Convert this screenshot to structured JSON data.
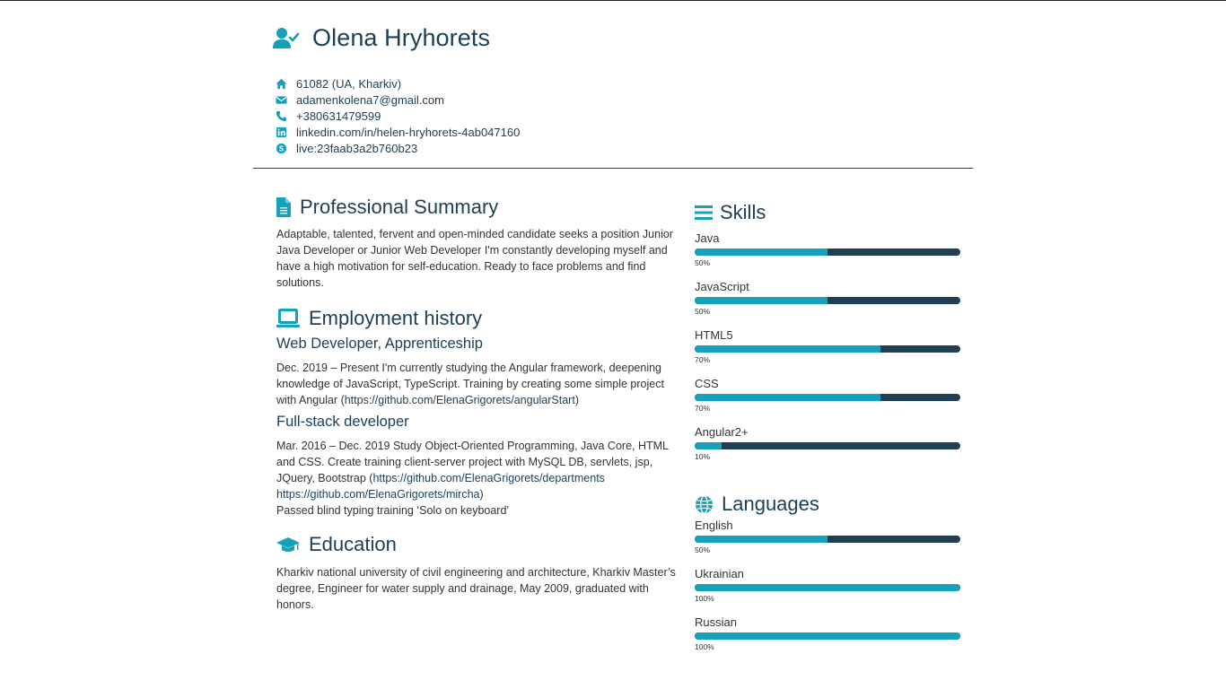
{
  "header": {
    "name": "Olena Hryhorets",
    "contacts": [
      {
        "icon": "home-icon",
        "text": "61082 (UA, Kharkiv)"
      },
      {
        "icon": "mail-icon",
        "text": "adamenkolena7@gmail.com"
      },
      {
        "icon": "phone-icon",
        "text": "+380631479599"
      },
      {
        "icon": "linkedin-icon",
        "text": "linkedin.com/in/helen-hryhorets-4ab047160"
      },
      {
        "icon": "skype-icon",
        "text": "live:23faab3a2b760b23"
      }
    ]
  },
  "summary": {
    "title": "Professional Summary",
    "text": "Adaptable, talented, fervent and open-minded candidate seeks a position Junior Java Developer or Junior Web Developer I'm constantly developing myself and have a high motivation for self-education. Ready to face problems and find solutions."
  },
  "employment": {
    "title": "Employment history",
    "jobs": [
      {
        "title": "Web Developer, Apprenticeship",
        "text": "Dec. 2019 – Present I'm currently studying the Angular framework, deepening knowledge of JavaScript, TypeScript. Training by creating some simple project with Angular (",
        "link1": "https://github.com/ElenaGrigorets/angularStart",
        "tail": ")"
      },
      {
        "title": "Full-stack developer",
        "text": "Mar. 2016 – Dec. 2019 Study Object-Oriented Programming, Java Core, HTML and CSS. Create training client-server project with MySQL DB, servlets, jsp, JQuery, Bootstrap (",
        "link1": "https://github.com/ElenaGrigorets/departments",
        "link2": "https://github.com/ElenaGrigorets/mircha",
        "tail": ")",
        "extra": "Passed blind typing training ‘Solo on keyboard’"
      }
    ]
  },
  "education": {
    "title": "Education",
    "text": "Kharkiv national university of civil engineering and architecture, Kharkiv Master’s degree, Engineer for water supply and drainage, May 2009, graduated with honors."
  },
  "skills": {
    "title": "Skills",
    "items": [
      {
        "label": "Java",
        "pct": "50%",
        "value": 0.5
      },
      {
        "label": "JavaScript",
        "pct": "50%",
        "value": 0.5
      },
      {
        "label": "HTML5",
        "pct": "70%",
        "value": 0.7
      },
      {
        "label": "CSS",
        "pct": "70%",
        "value": 0.7
      },
      {
        "label": "Angular2+",
        "pct": "10%",
        "value": 0.1
      }
    ]
  },
  "languages": {
    "title": "Languages",
    "items": [
      {
        "label": "English",
        "pct": "50%",
        "value": 0.5
      },
      {
        "label": "Ukrainian",
        "pct": "100%",
        "value": 1.0
      },
      {
        "label": "Russian",
        "pct": "100%",
        "value": 1.0
      }
    ]
  },
  "colors": {
    "accent": "#17a0b9",
    "dark": "#1f3f55"
  }
}
